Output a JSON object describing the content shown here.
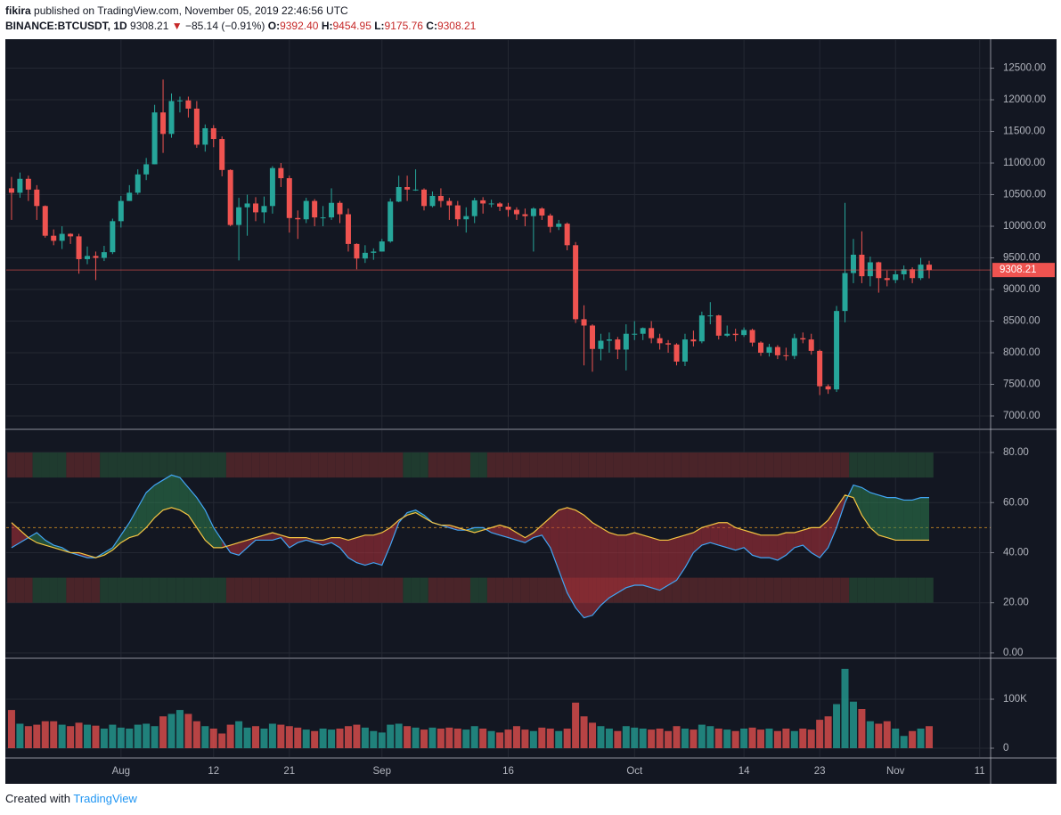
{
  "header": {
    "author": "fikira",
    "published": "published on TradingView.com, November 05, 2019 22:46:56 UTC",
    "symbol": "BINANCE:BTCUSDT, 1D",
    "price": "9308.21",
    "arrow": "▼",
    "change": "−85.14 (−0.91%)",
    "o_label": "O:",
    "o": "9392.40",
    "h_label": "H:",
    "h": "9454.95",
    "l_label": "L:",
    "l": "9175.76",
    "c_label": "C:",
    "c": "9308.21"
  },
  "footer": {
    "created": "Created with",
    "brand": "TradingView"
  },
  "chart_data": [
    {
      "type": "candlestick",
      "up_color": "#26a69a",
      "down_color": "#ef5350",
      "grid": true,
      "xlim": [
        -0.63,
        116.3
      ],
      "xticks": [
        {
          "value": 13,
          "label": "Aug"
        },
        {
          "value": 24,
          "label": "12"
        },
        {
          "value": 33,
          "label": "21"
        },
        {
          "value": 44,
          "label": "Sep"
        },
        {
          "value": 59,
          "label": "16"
        },
        {
          "value": 74,
          "label": "Oct"
        },
        {
          "value": 87,
          "label": "14"
        },
        {
          "value": 96,
          "label": "23"
        },
        {
          "value": 105,
          "label": "Nov"
        },
        {
          "value": 115,
          "label": "11"
        }
      ],
      "ylim": [
        6803,
        12944
      ],
      "yticks": [
        {
          "value": 7000,
          "label": "7000.00"
        },
        {
          "value": 7500,
          "label": "7500.00"
        },
        {
          "value": 8000,
          "label": "8000.00"
        },
        {
          "value": 8500,
          "label": "8500.00"
        },
        {
          "value": 9000,
          "label": "9000.00"
        },
        {
          "value": 9500,
          "label": "9500.00"
        },
        {
          "value": 10000,
          "label": "10000.00"
        },
        {
          "value": 10500,
          "label": "10500.00"
        },
        {
          "value": 11000,
          "label": "11000.00"
        },
        {
          "value": 11500,
          "label": "11500.00"
        },
        {
          "value": 12000,
          "label": "12000.00"
        },
        {
          "value": 12500,
          "label": "12500.00"
        }
      ],
      "open": [
        10600,
        10530,
        10750,
        10580,
        10320,
        9850,
        9770,
        9880,
        9840,
        9480,
        9530,
        9500,
        9590,
        10080,
        10400,
        10530,
        10820,
        10980,
        11800,
        11460,
        11980,
        11990,
        11860,
        11290,
        11550,
        11380,
        10890,
        10020,
        10300,
        10360,
        10220,
        10320,
        10920,
        10760,
        10130,
        10110,
        10400,
        10140,
        10140,
        10370,
        10190,
        9720,
        9490,
        9580,
        9600,
        9760,
        10390,
        10620,
        10580,
        10580,
        10320,
        10480,
        10400,
        10330,
        10110,
        10160,
        10410,
        10360,
        10360,
        10310,
        10260,
        10190,
        10160,
        10280,
        10170,
        9990,
        10040,
        9700,
        8530,
        8430,
        8060,
        8190,
        8210,
        8050,
        8300,
        8300,
        8390,
        8230,
        8150,
        8130,
        7860,
        8210,
        8180,
        8590,
        8590,
        8270,
        8300,
        8280,
        8360,
        8160,
        8000,
        8090,
        7960,
        7950,
        8230,
        8210,
        8030,
        7470,
        7420,
        8660,
        9260,
        9550,
        9210,
        9430,
        9180,
        9150,
        9240,
        9320,
        9180,
        9392.4
      ],
      "high": [
        10780,
        10850,
        10800,
        10650,
        10330,
        9950,
        10000,
        9890,
        9880,
        9680,
        9600,
        9690,
        10120,
        10480,
        10650,
        10900,
        11080,
        11920,
        12320,
        12100,
        12050,
        12050,
        11980,
        11610,
        11600,
        11420,
        10900,
        10450,
        10500,
        10460,
        10470,
        10950,
        11000,
        10800,
        10250,
        10450,
        10430,
        10320,
        10600,
        10400,
        10280,
        9730,
        9700,
        9650,
        9800,
        10440,
        10800,
        10800,
        10900,
        10600,
        10550,
        10600,
        10450,
        10400,
        10300,
        10450,
        10460,
        10420,
        10380,
        10370,
        10300,
        10280,
        10300,
        10300,
        10200,
        10100,
        10060,
        9750,
        8750,
        8450,
        8300,
        8320,
        8250,
        8450,
        8500,
        8400,
        8500,
        8300,
        8200,
        8150,
        8300,
        8350,
        8650,
        8800,
        8600,
        8430,
        8380,
        8400,
        8380,
        8180,
        8140,
        8120,
        8080,
        8300,
        8320,
        8300,
        8050,
        7500,
        8740,
        10370,
        9800,
        9920,
        9520,
        9440,
        9300,
        9300,
        9380,
        9350,
        9500,
        9454.95
      ],
      "low": [
        10100,
        10450,
        10400,
        10100,
        9820,
        9700,
        9640,
        9720,
        9250,
        9400,
        9150,
        9450,
        9560,
        9980,
        10400,
        10500,
        10730,
        10980,
        11160,
        11400,
        11800,
        11720,
        11240,
        11180,
        11250,
        10790,
        10000,
        9460,
        9850,
        10080,
        10050,
        10200,
        10620,
        9900,
        9800,
        10050,
        10000,
        10000,
        10100,
        10050,
        9600,
        9320,
        9420,
        9470,
        9600,
        9740,
        10380,
        10400,
        10560,
        10250,
        10300,
        10300,
        10100,
        10000,
        9900,
        10050,
        10200,
        10300,
        10240,
        10150,
        10100,
        10000,
        9600,
        10100,
        9900,
        9940,
        9620,
        8470,
        7800,
        7700,
        7880,
        8000,
        7900,
        7720,
        8200,
        8200,
        8150,
        8050,
        8000,
        7800,
        7790,
        8100,
        8150,
        8450,
        8210,
        8250,
        8180,
        8250,
        8100,
        7950,
        7940,
        7900,
        7880,
        7900,
        8150,
        7970,
        7330,
        7350,
        7380,
        8480,
        9100,
        9100,
        9050,
        8950,
        9050,
        9100,
        9150,
        9100,
        9150,
        9175.76
      ],
      "close": [
        10530,
        10750,
        10580,
        10320,
        9850,
        9770,
        9880,
        9840,
        9480,
        9530,
        9500,
        9590,
        10080,
        10400,
        10530,
        10820,
        10980,
        11800,
        11460,
        11980,
        11990,
        11860,
        11290,
        11550,
        11380,
        10890,
        10020,
        10300,
        10360,
        10220,
        10320,
        10920,
        10760,
        10130,
        10110,
        10400,
        10140,
        10140,
        10370,
        10190,
        9720,
        9490,
        9580,
        9600,
        9760,
        10390,
        10620,
        10580,
        10580,
        10320,
        10480,
        10400,
        10330,
        10110,
        10160,
        10410,
        10360,
        10360,
        10310,
        10260,
        10190,
        10160,
        10280,
        10170,
        9990,
        10040,
        9700,
        8530,
        8430,
        8060,
        8190,
        8210,
        8050,
        8300,
        8300,
        8390,
        8230,
        8150,
        8130,
        7860,
        8210,
        8180,
        8590,
        8590,
        8270,
        8300,
        8280,
        8360,
        8160,
        8000,
        8090,
        7960,
        7950,
        8230,
        8210,
        8030,
        7470,
        7420,
        8660,
        9260,
        9550,
        9210,
        9430,
        9180,
        9150,
        9240,
        9320,
        9180,
        9393.35,
        9308.21
      ]
    },
    {
      "type": "line",
      "ylim": [
        -1.8,
        88.9
      ],
      "yticks": [
        {
          "value": 0,
          "label": "0.00"
        },
        {
          "value": 20,
          "label": "20.00"
        },
        {
          "value": 40,
          "label": "40.00"
        },
        {
          "value": 60,
          "label": "60.00"
        },
        {
          "value": 80,
          "label": "80.00"
        }
      ],
      "bands": [
        [
          70,
          80
        ],
        [
          20,
          30
        ]
      ],
      "midline": 50,
      "fill_up": "#2e7d4f",
      "fill_down": "#b2323a",
      "band_up": "#1f3b2f",
      "band_down": "#4a2429",
      "series": [
        {
          "color": "#42a5f5",
          "values": [
            42,
            44,
            46,
            48,
            45,
            43,
            42,
            40,
            39,
            38,
            38,
            40,
            42,
            47,
            52,
            58,
            64,
            67,
            69,
            71,
            70,
            66,
            62,
            57,
            50,
            45,
            40,
            39,
            42,
            45,
            45,
            45,
            46,
            42,
            44,
            45,
            44,
            43,
            44,
            42,
            38,
            36,
            35,
            36,
            35,
            43,
            52,
            56,
            57,
            55,
            52,
            51,
            50,
            49,
            49,
            50,
            50,
            48,
            47,
            46,
            45,
            44,
            46,
            47,
            42,
            33,
            24,
            18,
            14,
            15,
            19,
            22,
            24,
            26,
            27,
            27,
            26,
            25,
            27,
            29,
            34,
            40,
            43,
            44,
            43,
            42,
            41,
            42,
            39,
            38,
            38,
            37,
            39,
            42,
            43,
            40,
            38,
            42,
            50,
            60,
            67,
            66,
            64,
            63,
            62,
            62,
            61,
            61,
            62,
            62
          ]
        },
        {
          "color": "#f5c542",
          "values": [
            52,
            49,
            46,
            44,
            43,
            42,
            41,
            40,
            40,
            39,
            38,
            39,
            41,
            44,
            46,
            47,
            50,
            54,
            57,
            58,
            57,
            55,
            50,
            45,
            42,
            42,
            43,
            44,
            45,
            46,
            47,
            48,
            47,
            46,
            46,
            46,
            45,
            45,
            46,
            46,
            45,
            46,
            47,
            47,
            48,
            50,
            53,
            55,
            56,
            54,
            52,
            51,
            51,
            50,
            49,
            48,
            49,
            50,
            51,
            50,
            48,
            46,
            48,
            51,
            54,
            57,
            58,
            57,
            55,
            52,
            50,
            48,
            47,
            47,
            48,
            47,
            46,
            45,
            45,
            46,
            47,
            48,
            50,
            51,
            52,
            52,
            50,
            49,
            48,
            47,
            47,
            47,
            48,
            48,
            49,
            50,
            50,
            53,
            58,
            63,
            62,
            55,
            50,
            47,
            46,
            45,
            45,
            45,
            45,
            45
          ]
        }
      ]
    },
    {
      "type": "bar",
      "ylim": [
        -18200,
        181800
      ],
      "yticks": [
        0,
        {
          "value": 100000,
          "label": "100K"
        }
      ],
      "values": [
        78000,
        50000,
        45000,
        48000,
        55000,
        55000,
        48000,
        45000,
        52000,
        48000,
        46000,
        40000,
        48000,
        42000,
        40000,
        48000,
        50000,
        45000,
        65000,
        70000,
        78000,
        70000,
        55000,
        45000,
        40000,
        30000,
        48000,
        55000,
        42000,
        45000,
        40000,
        50000,
        48000,
        45000,
        42000,
        38000,
        35000,
        40000,
        38000,
        40000,
        45000,
        48000,
        42000,
        35000,
        32000,
        48000,
        50000,
        45000,
        42000,
        38000,
        42000,
        40000,
        42000,
        40000,
        38000,
        45000,
        40000,
        35000,
        32000,
        38000,
        45000,
        38000,
        35000,
        42000,
        40000,
        35000,
        40000,
        93000,
        65000,
        52000,
        45000,
        40000,
        35000,
        45000,
        42000,
        40000,
        38000,
        40000,
        35000,
        45000,
        40000,
        38000,
        48000,
        45000,
        40000,
        38000,
        35000,
        40000,
        42000,
        38000,
        40000,
        35000,
        40000,
        35000,
        40000,
        38000,
        58000,
        65000,
        90000,
        162000,
        95000,
        80000,
        55000,
        50000,
        55000,
        40000,
        25000,
        35000,
        40000,
        45000
      ]
    }
  ]
}
